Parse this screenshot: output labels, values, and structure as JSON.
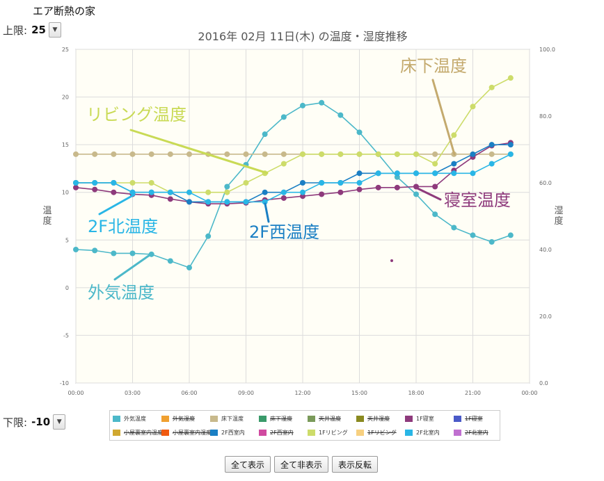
{
  "app": {
    "title": "エア断熱の家"
  },
  "upper_limit": {
    "label": "上限:",
    "value": "25"
  },
  "lower_limit": {
    "label": "下限:",
    "value": "-10"
  },
  "buttons": {
    "show_all": "全て表示",
    "hide_all": "全て非表示",
    "invert": "表示反転"
  },
  "chart_data": {
    "type": "line",
    "title": "2016年 02月 11日(木) の温度・湿度推移",
    "ylabel": "温度",
    "y2label": "湿度",
    "ylim": [
      -10,
      25
    ],
    "yticks": [
      "-10",
      "-5",
      "0",
      "5",
      "10",
      "15",
      "20",
      "25"
    ],
    "y2lim": [
      0,
      100
    ],
    "y2ticks": [
      "0.0",
      "20.0",
      "40.0",
      "60.0",
      "80.0",
      "100.0"
    ],
    "xlim": [
      0,
      24
    ],
    "xticks": [
      "00:00",
      "03:00",
      "06:00",
      "09:00",
      "12:00",
      "15:00",
      "18:00",
      "21:00",
      "00:00"
    ],
    "grid": true,
    "series": [
      {
        "name": "外気温度",
        "color": "#4cb8c9",
        "x": [
          0,
          1,
          2,
          3,
          4,
          5,
          6,
          7,
          8,
          9,
          10,
          11,
          12,
          13,
          14,
          15,
          16,
          17,
          18,
          19,
          20,
          21,
          22,
          23
        ],
        "values": [
          4.0,
          3.9,
          3.6,
          3.6,
          3.5,
          2.8,
          2.1,
          5.4,
          10.6,
          12.9,
          16.1,
          17.9,
          19.1,
          19.4,
          18.1,
          16.3,
          14.0,
          11.6,
          9.8,
          7.7,
          6.3,
          5.5,
          4.8,
          5.5
        ]
      },
      {
        "name": "床下温度",
        "color": "#c8b98c",
        "x": [
          0,
          1,
          2,
          3,
          4,
          5,
          6,
          7,
          8,
          9,
          10,
          11,
          12,
          13,
          14,
          15,
          16,
          17,
          18,
          19,
          20,
          21,
          22,
          23
        ],
        "values": [
          14,
          14,
          14,
          14,
          14,
          14,
          14,
          14,
          14,
          14,
          14,
          14,
          14,
          14,
          14,
          14,
          14,
          14,
          14,
          14,
          14,
          14,
          14,
          14
        ]
      },
      {
        "name": "1Fリビング",
        "color": "#cddc6a",
        "x": [
          0,
          1,
          2,
          3,
          4,
          5,
          6,
          7,
          8,
          9,
          10,
          11,
          12,
          13,
          14,
          15,
          16,
          17,
          18,
          19,
          20,
          21,
          22,
          23
        ],
        "values": [
          11,
          11,
          11,
          11,
          11,
          10,
          10,
          10,
          10,
          11,
          12,
          13,
          14,
          14,
          14,
          14,
          14,
          14,
          14,
          13,
          16,
          19,
          21,
          22
        ]
      },
      {
        "name": "1F寝室",
        "color": "#8e3a7c",
        "x": [
          0,
          1,
          2,
          3,
          4,
          5,
          6,
          7,
          8,
          9,
          10,
          11,
          12,
          13,
          14,
          15,
          16,
          17,
          18,
          19,
          20,
          21,
          22,
          23
        ],
        "values": [
          10.5,
          10.3,
          10.0,
          9.8,
          9.7,
          9.3,
          9.0,
          8.8,
          8.8,
          8.9,
          9.2,
          9.4,
          9.6,
          9.8,
          10.0,
          10.3,
          10.5,
          10.5,
          10.6,
          10.6,
          12.3,
          13.7,
          14.9,
          15.2
        ]
      },
      {
        "name": "2F西室内",
        "color": "#1a7fc4",
        "x": [
          0,
          1,
          2,
          3,
          4,
          5,
          6,
          7,
          8,
          9,
          10,
          11,
          12,
          13,
          14,
          15,
          16,
          17,
          18,
          19,
          20,
          21,
          22,
          23
        ],
        "values": [
          11,
          11,
          11,
          10,
          10,
          10,
          9,
          9,
          9,
          9,
          10,
          10,
          11,
          11,
          11,
          12,
          12,
          12,
          12,
          12,
          13,
          14,
          15,
          15
        ]
      },
      {
        "name": "2F北室内",
        "color": "#29b6e6",
        "x": [
          0,
          1,
          2,
          3,
          4,
          5,
          6,
          7,
          8,
          9,
          10,
          11,
          12,
          13,
          14,
          15,
          16,
          17,
          18,
          19,
          20,
          21,
          22,
          23
        ],
        "values": [
          11,
          11,
          11,
          10,
          10,
          10,
          10,
          9,
          9,
          9,
          9,
          10,
          10,
          11,
          11,
          11,
          12,
          12,
          12,
          12,
          12,
          12,
          13,
          14
        ]
      }
    ],
    "annotations": [
      {
        "text": "床下温度",
        "color": "#c4aa6e"
      },
      {
        "text": "リビング温度",
        "color": "#c9da55"
      },
      {
        "text": "2F北温度",
        "color": "#29b6e6"
      },
      {
        "text": "外気温度",
        "color": "#4cb8c9"
      },
      {
        "text": "2F西温度",
        "color": "#1a7fc4"
      },
      {
        "text": "寝室温度",
        "color": "#8e3a7c"
      }
    ]
  },
  "legend": [
    {
      "label": "外気温度",
      "color": "#4cb8c9",
      "active": true
    },
    {
      "label": "外気湿度",
      "color": "#f0a030",
      "active": false
    },
    {
      "label": "床下温度",
      "color": "#c8b98c",
      "active": true
    },
    {
      "label": "床下湿度",
      "color": "#3a9a6a",
      "active": false
    },
    {
      "label": "天井温度",
      "color": "#7a9a5a",
      "active": false
    },
    {
      "label": "天井湿度",
      "color": "#8a8a20",
      "active": false
    },
    {
      "label": "1F寝室",
      "color": "#8e3a7c",
      "active": true
    },
    {
      "label": "1F寝室",
      "color": "#4a5ac8",
      "active": false
    },
    {
      "label": "小屋裏室内温度",
      "color": "#d0a830",
      "active": false
    },
    {
      "label": "小屋裏室内湿度",
      "color": "#f05a10",
      "active": false
    },
    {
      "label": "2F西室内",
      "color": "#1a7fc4",
      "active": true
    },
    {
      "label": "2F西室内",
      "color": "#d04aa0",
      "active": false
    },
    {
      "label": "1Fリビング",
      "color": "#cddc6a",
      "active": true
    },
    {
      "label": "1Fリビング",
      "color": "#f7d080",
      "active": false
    },
    {
      "label": "2F北室内",
      "color": "#29b6e6",
      "active": true
    },
    {
      "label": "2F北室内",
      "color": "#c070d0",
      "active": false
    }
  ]
}
